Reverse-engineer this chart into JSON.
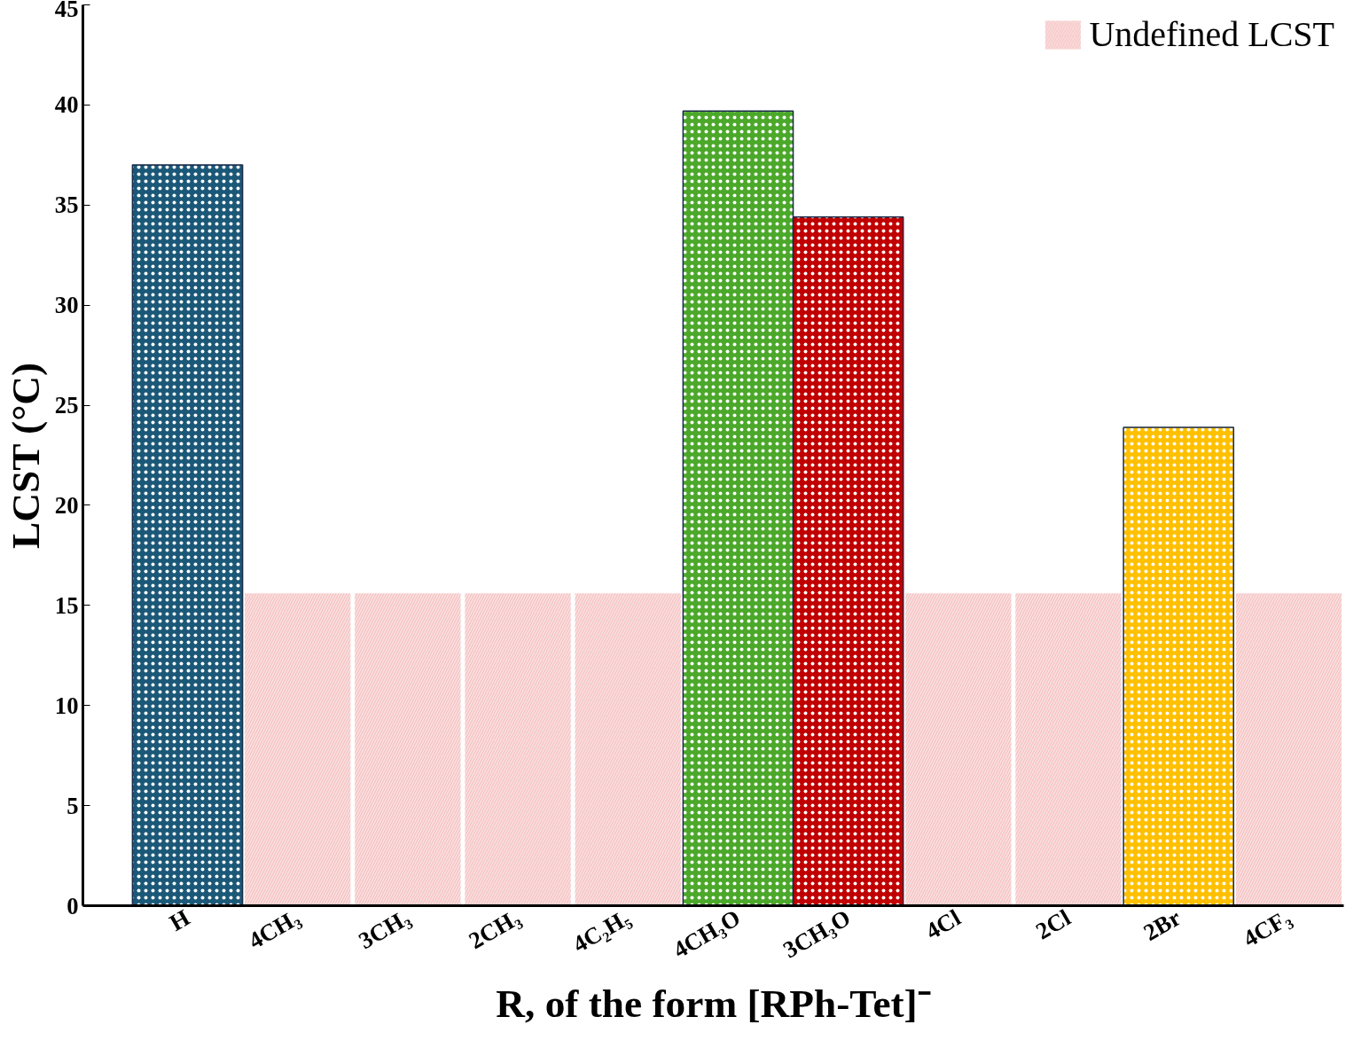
{
  "chart_data": {
    "type": "bar",
    "xlabel": "R, of the form [RPh-Tet]⁻",
    "ylabel": "LCST (°C)",
    "categories": [
      "H",
      "4CH₃",
      "3CH₃",
      "2CH₃",
      "4C₂H₅",
      "4CH₃O",
      "3CH₃O",
      "4Cl",
      "2Cl",
      "2Br",
      "4CF₃"
    ],
    "series": [
      {
        "colors": [
          "#1b5878",
          null,
          null,
          null,
          null,
          "#4ba82a",
          "#c00000",
          null,
          null,
          "#ffc000",
          null
        ],
        "values": [
          37,
          null,
          null,
          null,
          null,
          39.7,
          34.4,
          null,
          null,
          23.9,
          null
        ]
      },
      {
        "name": "Undefined LCST",
        "color": "#f6c4c4",
        "values": [
          null,
          15.6,
          15.6,
          15.6,
          15.6,
          null,
          null,
          15.6,
          15.6,
          null,
          15.6
        ]
      }
    ],
    "ylim": [
      0,
      45
    ],
    "yticks": [
      0,
      5,
      10,
      15,
      20,
      25,
      30,
      35,
      40,
      45
    ],
    "grid": false,
    "legend": "top right"
  }
}
